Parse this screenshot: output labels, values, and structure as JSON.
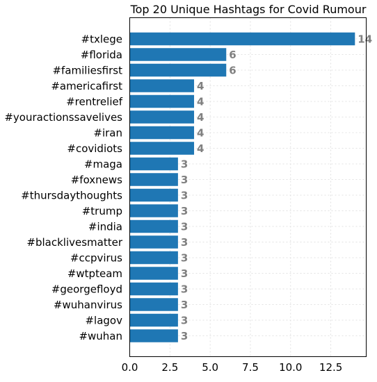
{
  "chart_data": {
    "type": "bar",
    "orientation": "horizontal",
    "title": "Top 20 Unique Hashtags for Covid Rumour",
    "xlabel": "",
    "ylabel": "",
    "categories": [
      "#txlege",
      "#florida",
      "#familiesfirst",
      "#americafirst",
      "#rentrelief",
      "#youractionssavelives",
      "#iran",
      "#covidiots",
      "#maga",
      "#foxnews",
      "#thursdaythoughts",
      "#trump",
      "#india",
      "#blacklivesmatter",
      "#ccpvirus",
      "#wtpteam",
      "#georgefloyd",
      "#wuhanvirus",
      "#lagov",
      "#wuhan"
    ],
    "values": [
      14,
      6,
      6,
      4,
      4,
      4,
      4,
      4,
      3,
      3,
      3,
      3,
      3,
      3,
      3,
      3,
      3,
      3,
      3,
      3
    ],
    "value_labels": [
      "14",
      "6",
      "6",
      "4",
      "4",
      "4",
      "4",
      "4",
      "3",
      "3",
      "3",
      "3",
      "3",
      "3",
      "3",
      "3",
      "3",
      "3",
      "3",
      "3"
    ],
    "xlim": [
      0,
      14.7
    ],
    "xticks": [
      0.0,
      2.5,
      5.0,
      7.5,
      10.0,
      12.5
    ],
    "xtick_labels": [
      "0.0",
      "2.5",
      "5.0",
      "7.5",
      "10.0",
      "12.5"
    ],
    "grid": true,
    "bar_color": "#1f77b4",
    "value_label_color": "#808080"
  }
}
